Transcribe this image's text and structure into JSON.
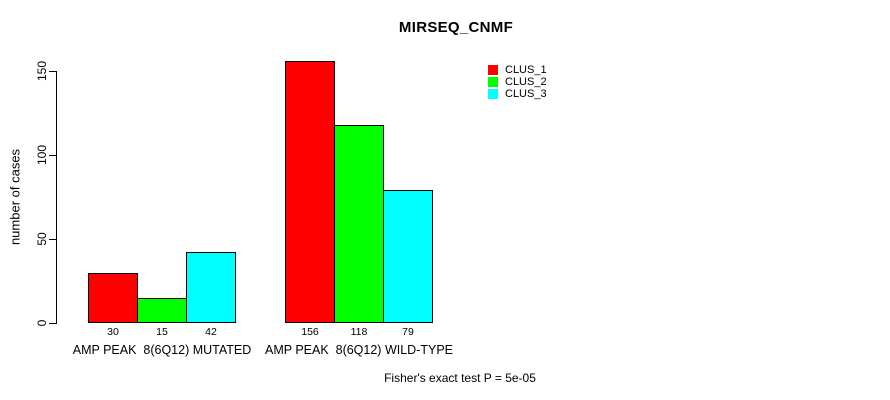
{
  "chart_data": {
    "type": "bar",
    "title": "MIRSEQ_CNMF",
    "ylabel": "number of cases",
    "xlabel": "",
    "categories": [
      "AMP PEAK  8(6Q12) MUTATED",
      "AMP PEAK  8(6Q12) WILD-TYPE"
    ],
    "series": [
      {
        "name": "CLUS_1",
        "color": "#ff0000",
        "values": [
          30,
          156
        ]
      },
      {
        "name": "CLUS_2",
        "color": "#00ff00",
        "values": [
          15,
          118
        ]
      },
      {
        "name": "CLUS_3",
        "color": "#00ffff",
        "values": [
          42,
          79
        ]
      }
    ],
    "bar_value_labels": [
      [
        "30",
        "15",
        "42"
      ],
      [
        "156",
        "118",
        "79"
      ]
    ],
    "yticks": [
      0,
      50,
      100,
      150
    ],
    "ylim": [
      0,
      156
    ],
    "grid": false,
    "legend_position": "top-right",
    "bar_border_color": "#000000",
    "background_color": "#ffffff",
    "annotation": "Fisher's exact test P = 5e-05"
  }
}
